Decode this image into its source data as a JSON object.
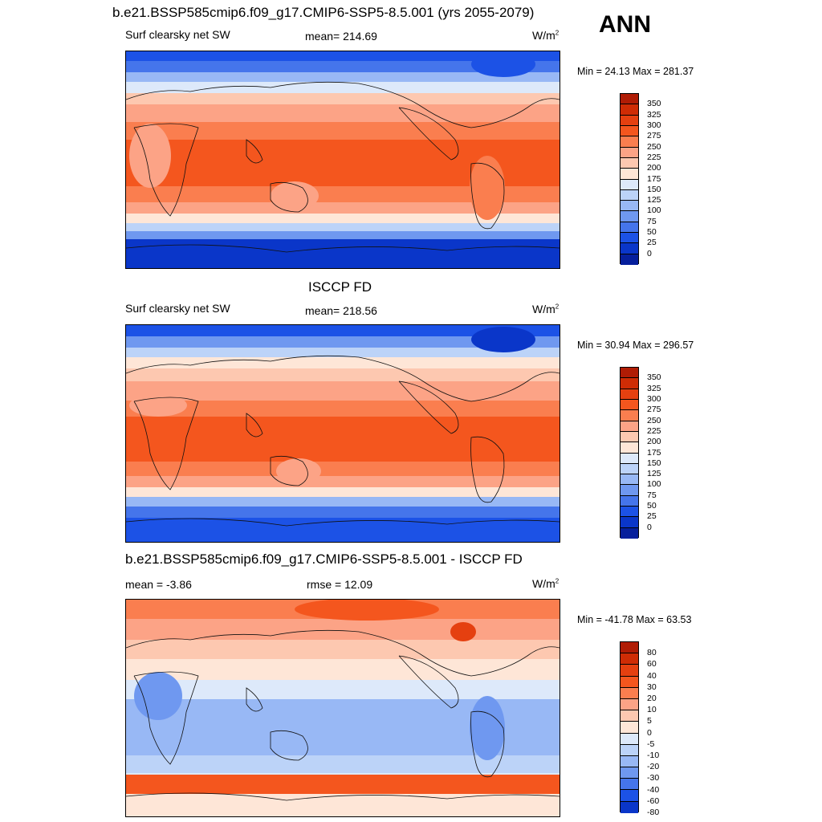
{
  "season": "ANN",
  "units_base": "W/m",
  "units_exp": "2",
  "panels": [
    {
      "title": "b.e21.BSSP585cmip6.f09_g17.CMIP6-SSP5-8.5.001 (yrs 2055-2079)",
      "left_label": "Surf clearsky net SW",
      "center_label": "mean= 214.69",
      "minmax": "Min =  24.13 Max = 281.37",
      "colorbar_levels": [
        "350",
        "325",
        "300",
        "275",
        "250",
        "225",
        "200",
        "175",
        "150",
        "125",
        "100",
        "75",
        "50",
        "25",
        "0"
      ]
    },
    {
      "title": "ISCCP FD",
      "left_label": "Surf clearsky net SW",
      "center_label": "mean= 218.56",
      "minmax": "Min =  30.94 Max = 296.57",
      "colorbar_levels": [
        "350",
        "325",
        "300",
        "275",
        "250",
        "225",
        "200",
        "175",
        "150",
        "125",
        "100",
        "75",
        "50",
        "25",
        "0"
      ]
    },
    {
      "title": "b.e21.BSSP585cmip6.f09_g17.CMIP6-SSP5-8.5.001 - ISCCP FD",
      "left_label": "mean =  -3.86",
      "center_label": "rmse =  12.09",
      "minmax": "Min = -41.78 Max =  63.53",
      "colorbar_levels": [
        "80",
        "60",
        "40",
        "30",
        "20",
        "10",
        "5",
        "0",
        "-5",
        "-10",
        "-20",
        "-30",
        "-40",
        "-60",
        "-80"
      ]
    }
  ],
  "colors": {
    "abs_scale": [
      "#b01c05",
      "#cf2c05",
      "#e54010",
      "#f4561e",
      "#fa7e4f",
      "#fca386",
      "#fdc8b0",
      "#fee6d7",
      "#dde9fa",
      "#bcd3f8",
      "#98b8f5",
      "#6f98f0",
      "#4575eb",
      "#1c52e6",
      "#0a36c9",
      "#061f9c"
    ],
    "diff_scale": [
      "#8c1003",
      "#b01c05",
      "#cf2c05",
      "#e54010",
      "#f4561e",
      "#fa7e4f",
      "#fca386",
      "#fdc8b0",
      "#fee6d7",
      "#dde9fa",
      "#bcd3f8",
      "#98b8f5",
      "#6f98f0",
      "#4575eb",
      "#1c52e6",
      "#0a36c9",
      "#061f9c"
    ]
  }
}
